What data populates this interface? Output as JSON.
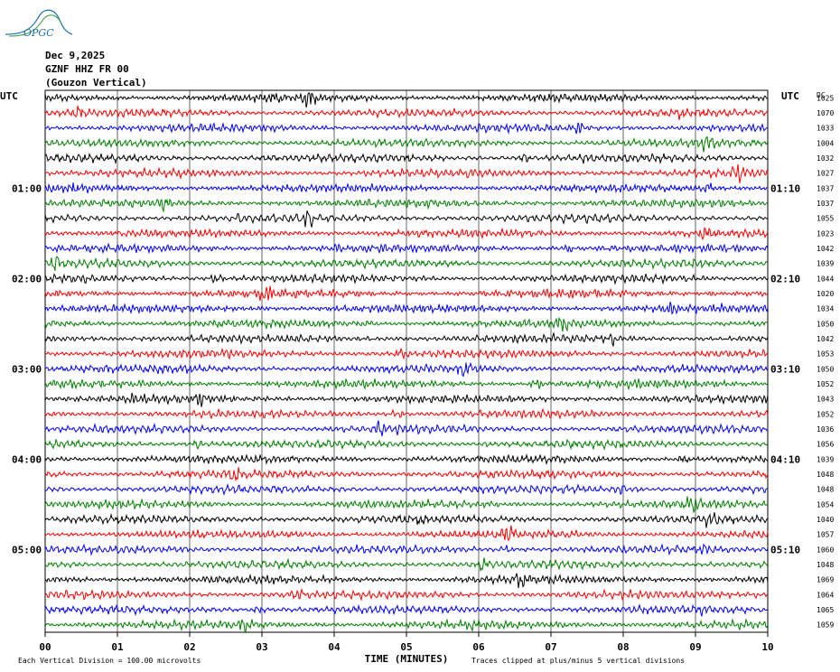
{
  "logo_text": "OPGC",
  "header": {
    "date": "Dec 9,2025",
    "channel": "GZNF HHZ FR 00",
    "station": "(Gouzon Vertical)"
  },
  "colors": {
    "cycle": [
      "#000000",
      "#ff0000",
      "#0000ff",
      "#008000"
    ],
    "grid": "#000000",
    "logo": "#1f6fa8"
  },
  "chart_data": {
    "type": "line",
    "title": "",
    "xlabel": "TIME (MINUTES)",
    "xlim": [
      0,
      10
    ],
    "x_ticks": [
      "00",
      "01",
      "02",
      "03",
      "04",
      "05",
      "06",
      "07",
      "08",
      "09",
      "10"
    ],
    "left_axis_label": "UTC",
    "right_axis_label": "UTC",
    "left_hour_labels": [
      "01:00",
      "02:00",
      "03:00",
      "04:00",
      "05:00"
    ],
    "right_hour_labels": [
      "01:10",
      "02:10",
      "03:10",
      "04:10",
      "05:10"
    ],
    "right_corner_label": "DC",
    "traces_per_hour": 6,
    "trace_count": 36,
    "dc_offsets": [
      1025,
      1070,
      1033,
      1004,
      1032,
      1027,
      1037,
      1037,
      1055,
      1023,
      1042,
      1039,
      1044,
      1020,
      1034,
      1050,
      1042,
      1053,
      1050,
      1052,
      1043,
      1052,
      1036,
      1056,
      1039,
      1048,
      1048,
      1054,
      1040,
      1057,
      1060,
      1048,
      1069,
      1064,
      1065,
      1059
    ],
    "footer_left": "Each Vertical Division =  100.00 microvolts",
    "footer_right": "Traces clipped at plus/minus 5 vertical divisions",
    "grid": true
  }
}
